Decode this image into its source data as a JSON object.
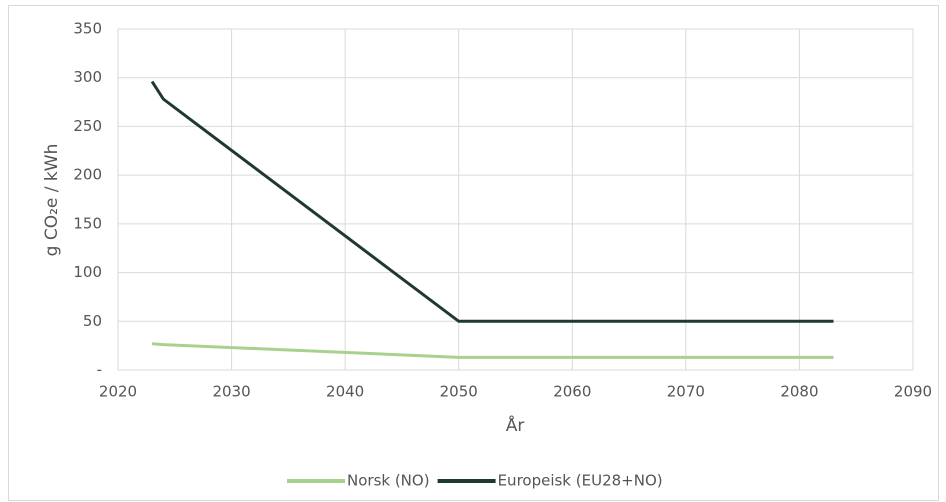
{
  "chart_data": {
    "type": "line",
    "x": [
      2023,
      2024,
      2050,
      2083
    ],
    "series": [
      {
        "name": "Norsk (NO)",
        "color": "#a9d18e",
        "values": [
          27,
          26,
          13,
          13
        ]
      },
      {
        "name": "Europeisk (EU28+NO)",
        "color": "#1e3a2f",
        "values": [
          296,
          278,
          50,
          50
        ]
      }
    ],
    "xlabel": "År",
    "ylabel": "g CO₂e / kWh",
    "xlim": [
      2020,
      2090
    ],
    "xticks": [
      2020,
      2030,
      2040,
      2050,
      2060,
      2070,
      2080,
      2090
    ],
    "ylim": [
      0,
      350
    ],
    "yticks": [
      {
        "value": 0,
        "label": "-"
      },
      50,
      100,
      150,
      200,
      250,
      300,
      350
    ],
    "grid": true,
    "legend": "bottom"
  }
}
